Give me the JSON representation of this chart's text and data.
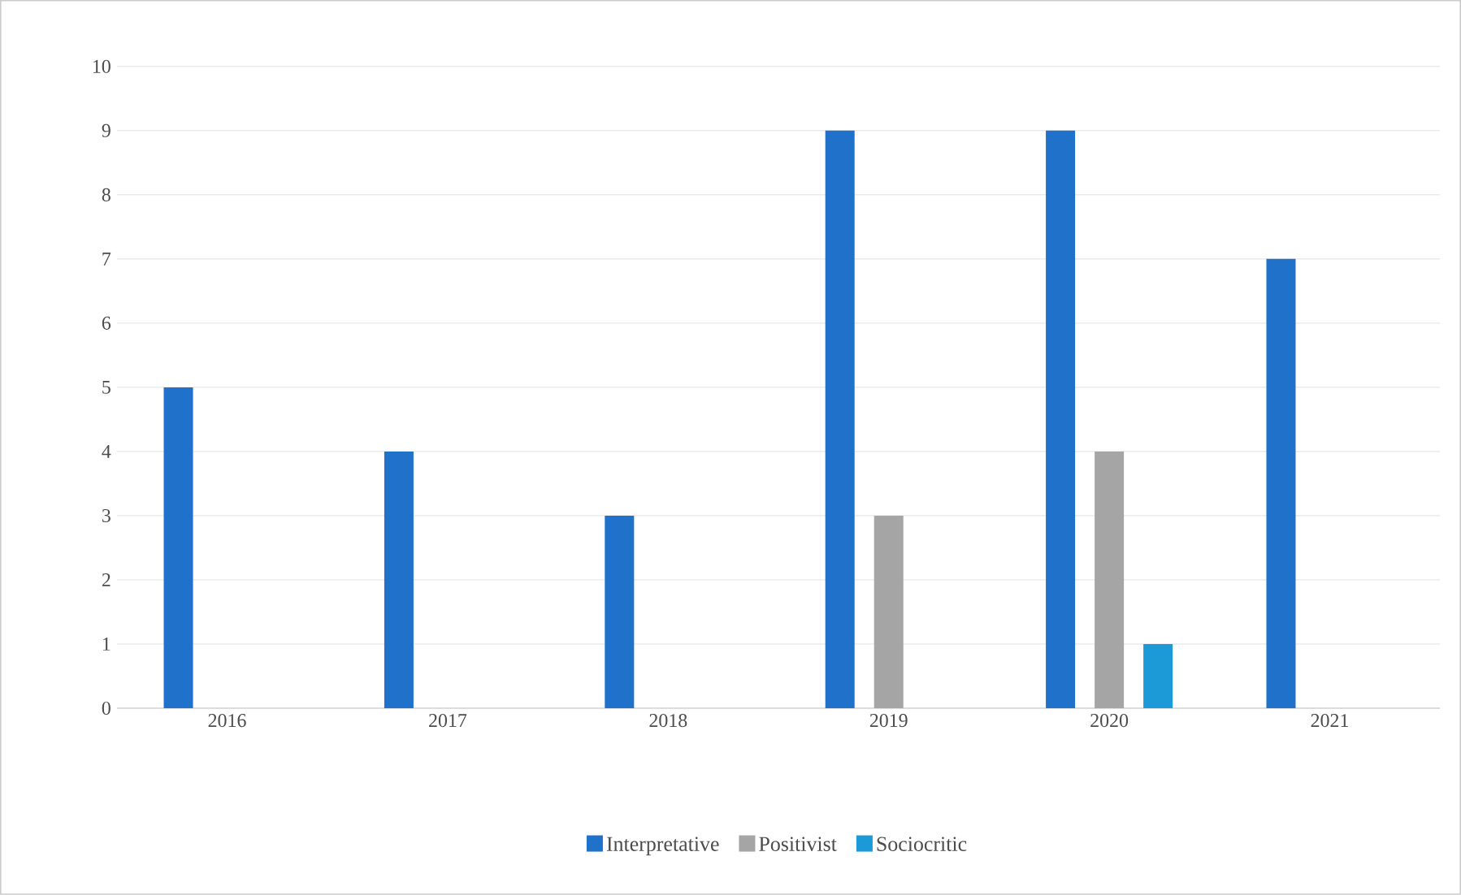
{
  "chart_data": {
    "type": "bar",
    "categories": [
      "2016",
      "2017",
      "2018",
      "2019",
      "2020",
      "2021"
    ],
    "series": [
      {
        "name": "Interpretative",
        "color": "#1f71c9",
        "values": [
          5,
          4,
          3,
          9,
          9,
          7
        ]
      },
      {
        "name": "Positivist",
        "color": "#a5a5a5",
        "values": [
          0,
          0,
          0,
          3,
          4,
          0
        ]
      },
      {
        "name": "Sociocritic",
        "color": "#1c9ad8",
        "values": [
          0,
          0,
          0,
          0,
          1,
          0
        ]
      }
    ],
    "ylim": [
      0,
      10
    ],
    "yticks": [
      0,
      1,
      2,
      3,
      4,
      5,
      6,
      7,
      8,
      9,
      10
    ],
    "grid": "y",
    "legend": "bottom"
  }
}
